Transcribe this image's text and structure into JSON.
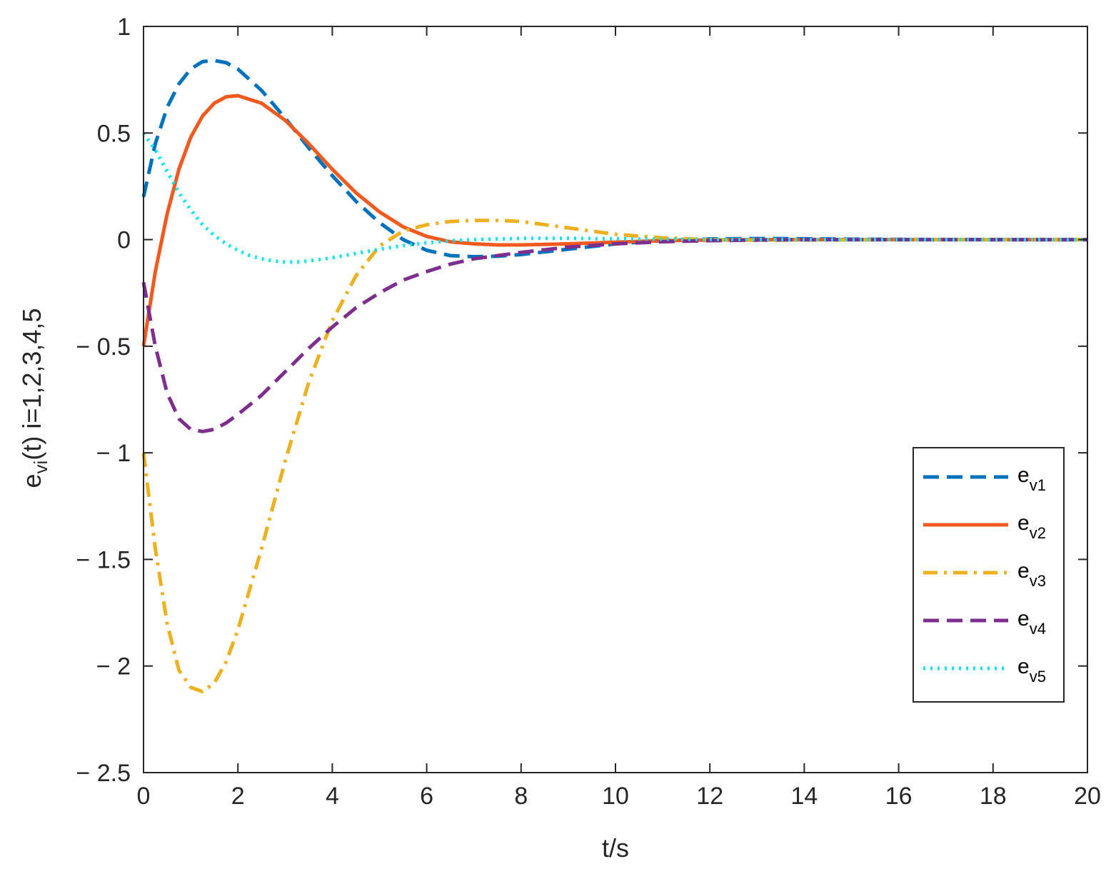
{
  "chart_data": {
    "type": "line",
    "xlabel": "t/s",
    "ylabel": {
      "base": "e",
      "sub": "vi",
      "rest": "(t) i=1,2,3,4,5"
    },
    "xlim": [
      0,
      20
    ],
    "ylim": [
      -2.5,
      1
    ],
    "xticks": [
      0,
      2,
      4,
      6,
      8,
      10,
      12,
      14,
      16,
      18,
      20
    ],
    "yticks": [
      1,
      0.5,
      0,
      -0.5,
      -1,
      -1.5,
      -2,
      -2.5
    ],
    "xtick_labels": [
      "0",
      "2",
      "4",
      "6",
      "8",
      "10",
      "12",
      "14",
      "16",
      "18",
      "20"
    ],
    "ytick_labels": [
      "1",
      "0.5",
      "0",
      "− 0.5",
      "− 1",
      "− 1.5",
      "− 2",
      "− 2.5"
    ],
    "grid": false,
    "legend_position": "right",
    "series": [
      {
        "name": "e_v1",
        "legend": {
          "base": "e",
          "sub": "v1"
        },
        "color": "#0072BD",
        "dash": "dashed",
        "x": [
          0,
          0.25,
          0.5,
          0.75,
          1,
          1.25,
          1.5,
          1.75,
          2,
          2.5,
          3,
          3.5,
          4,
          4.5,
          5,
          5.5,
          6,
          6.5,
          7,
          7.5,
          8,
          9,
          10,
          11,
          12,
          13,
          14,
          15,
          16,
          18,
          20
        ],
        "y": [
          0.2,
          0.45,
          0.62,
          0.73,
          0.8,
          0.835,
          0.84,
          0.83,
          0.8,
          0.7,
          0.57,
          0.43,
          0.3,
          0.18,
          0.08,
          0.0,
          -0.05,
          -0.075,
          -0.08,
          -0.078,
          -0.07,
          -0.045,
          -0.02,
          -0.005,
          0.003,
          0.005,
          0.004,
          0.002,
          0.001,
          0,
          0
        ]
      },
      {
        "name": "e_v2",
        "legend": {
          "base": "e",
          "sub": "v2"
        },
        "color": "#F05A1E",
        "dash": "solid",
        "x": [
          0,
          0.25,
          0.5,
          0.75,
          1,
          1.25,
          1.5,
          1.75,
          2,
          2.5,
          3,
          3.5,
          4,
          4.5,
          5,
          5.5,
          6,
          6.5,
          7,
          7.5,
          8,
          9,
          10,
          11,
          12,
          13,
          14,
          15,
          16,
          18,
          20
        ],
        "y": [
          -0.5,
          -0.15,
          0.12,
          0.33,
          0.48,
          0.58,
          0.64,
          0.67,
          0.675,
          0.64,
          0.56,
          0.45,
          0.33,
          0.22,
          0.13,
          0.06,
          0.015,
          -0.01,
          -0.02,
          -0.025,
          -0.025,
          -0.02,
          -0.012,
          -0.005,
          -0.002,
          0,
          0,
          0,
          0,
          0,
          0
        ]
      },
      {
        "name": "e_v3",
        "legend": {
          "base": "e",
          "sub": "v3"
        },
        "color": "#EDB120",
        "dash": "dashdot",
        "x": [
          0,
          0.25,
          0.5,
          0.75,
          1,
          1.25,
          1.5,
          1.75,
          2,
          2.5,
          3,
          3.5,
          4,
          4.5,
          5,
          5.5,
          6,
          6.5,
          7,
          7.5,
          8,
          8.5,
          9,
          10,
          11,
          12,
          13,
          14,
          16,
          18,
          20
        ],
        "y": [
          -1.0,
          -1.45,
          -1.8,
          -2.02,
          -2.1,
          -2.12,
          -2.08,
          -1.98,
          -1.83,
          -1.45,
          -1.04,
          -0.67,
          -0.38,
          -0.17,
          -0.03,
          0.04,
          0.07,
          0.085,
          0.09,
          0.09,
          0.085,
          0.07,
          0.055,
          0.025,
          0.008,
          0.0,
          -0.003,
          -0.002,
          0,
          0,
          0
        ]
      },
      {
        "name": "e_v4",
        "legend": {
          "base": "e",
          "sub": "v4"
        },
        "color": "#7E2F8E",
        "dash": "dashed",
        "x": [
          0,
          0.25,
          0.5,
          0.75,
          1,
          1.25,
          1.5,
          1.75,
          2,
          2.5,
          3,
          3.5,
          4,
          4.5,
          5,
          5.5,
          6,
          6.5,
          7,
          7.5,
          8,
          9,
          10,
          11,
          12,
          13,
          14,
          15,
          16,
          18,
          20
        ],
        "y": [
          -0.2,
          -0.5,
          -0.72,
          -0.84,
          -0.89,
          -0.9,
          -0.89,
          -0.86,
          -0.82,
          -0.73,
          -0.62,
          -0.51,
          -0.41,
          -0.32,
          -0.25,
          -0.19,
          -0.15,
          -0.115,
          -0.09,
          -0.075,
          -0.06,
          -0.035,
          -0.02,
          -0.01,
          -0.005,
          -0.002,
          0,
          0,
          0,
          0,
          0
        ]
      },
      {
        "name": "e_v5",
        "legend": {
          "base": "e",
          "sub": "v5"
        },
        "color": "#00E5EE",
        "dash": "dotted",
        "x": [
          0,
          0.25,
          0.5,
          0.75,
          1,
          1.25,
          1.5,
          1.75,
          2,
          2.25,
          2.5,
          2.75,
          3,
          3.25,
          3.5,
          4,
          4.5,
          5,
          5.5,
          6,
          6.5,
          7,
          8,
          9,
          10,
          11,
          12,
          14,
          16,
          18,
          20
        ],
        "y": [
          0.5,
          0.42,
          0.32,
          0.22,
          0.14,
          0.07,
          0.02,
          -0.02,
          -0.05,
          -0.075,
          -0.09,
          -0.1,
          -0.105,
          -0.105,
          -0.1,
          -0.085,
          -0.065,
          -0.045,
          -0.028,
          -0.015,
          -0.006,
          0.0,
          0.006,
          0.006,
          0.004,
          0.002,
          0.001,
          0,
          0,
          0,
          0
        ]
      }
    ]
  }
}
